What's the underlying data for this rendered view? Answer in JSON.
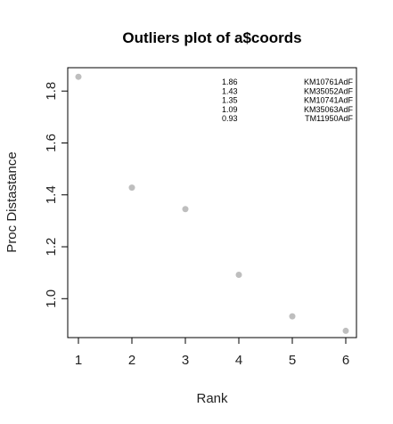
{
  "chart_data": {
    "type": "scatter",
    "title": "Outliers plot of a$coords",
    "xlabel": "Rank",
    "ylabel": "Proc Distastance",
    "x_ticks": [
      1,
      2,
      3,
      4,
      5,
      6
    ],
    "y_ticks": [
      "1.0",
      "1.2",
      "1.4",
      "1.6",
      "1.8"
    ],
    "xlim": [
      0.8,
      6.2
    ],
    "ylim": [
      0.85,
      1.89
    ],
    "point_color": "#bebebe",
    "points": [
      {
        "x": 1,
        "y": 1.855
      },
      {
        "x": 2,
        "y": 1.428
      },
      {
        "x": 3,
        "y": 1.345
      },
      {
        "x": 4,
        "y": 1.092
      },
      {
        "x": 5,
        "y": 0.932
      },
      {
        "x": 6,
        "y": 0.876
      }
    ],
    "annotations": [
      {
        "value": "1.86",
        "label": "KM10761AdF"
      },
      {
        "value": "1.43",
        "label": "KM35052AdF"
      },
      {
        "value": "1.35",
        "label": "KM10741AdF"
      },
      {
        "value": "1.09",
        "label": "KM35063AdF"
      },
      {
        "value": "0.93",
        "label": "TM11950AdF"
      }
    ]
  }
}
